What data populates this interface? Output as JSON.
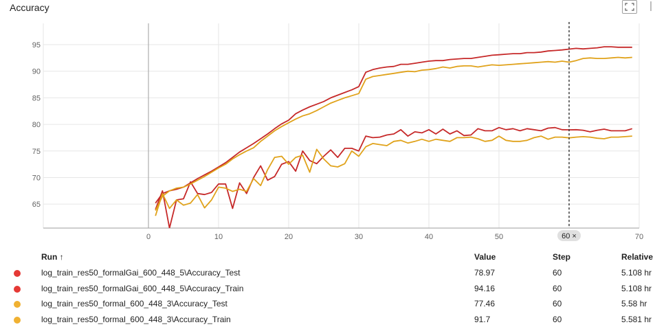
{
  "title": "Accuracy",
  "chart_data": {
    "type": "line",
    "xlim": [
      -15,
      70
    ],
    "ylim": [
      60.5,
      99
    ],
    "x_ticks": [
      0,
      10,
      20,
      30,
      40,
      50,
      60,
      70
    ],
    "y_ticks": [
      65,
      70,
      75,
      80,
      85,
      90,
      95
    ],
    "hover_step": 60,
    "hover_label": "60 ×",
    "grid": true,
    "series": [
      {
        "name": "log_train_res50_formalGai_600_448_5\\Accuracy_Test",
        "color": "#c62828",
        "x": [
          1,
          2,
          3,
          4,
          5,
          6,
          7,
          8,
          9,
          10,
          11,
          12,
          13,
          14,
          15,
          16,
          17,
          18,
          19,
          20,
          21,
          22,
          23,
          24,
          25,
          26,
          27,
          28,
          29,
          30,
          31,
          32,
          33,
          34,
          35,
          36,
          37,
          38,
          39,
          40,
          41,
          42,
          43,
          44,
          45,
          46,
          47,
          48,
          49,
          50,
          51,
          52,
          53,
          54,
          55,
          56,
          57,
          58,
          59,
          60,
          61,
          62,
          63,
          64,
          65,
          66,
          67,
          68,
          69
        ],
        "values": [
          64.0,
          67.5,
          60.5,
          65.8,
          66.0,
          69.2,
          67.0,
          66.8,
          67.2,
          68.8,
          68.8,
          64.2,
          69.0,
          67.0,
          70.0,
          72.2,
          69.5,
          70.2,
          72.5,
          73.0,
          71.2,
          75.0,
          73.2,
          72.6,
          74.0,
          75.2,
          73.8,
          75.5,
          75.5,
          75.0,
          77.8,
          77.5,
          77.6,
          78.0,
          78.2,
          79.0,
          77.8,
          78.6,
          78.4,
          79.0,
          78.2,
          79.1,
          78.2,
          78.8,
          77.9,
          78.0,
          79.2,
          78.8,
          78.8,
          79.4,
          79.0,
          79.2,
          78.8,
          79.2,
          79.0,
          78.8,
          79.3,
          79.4,
          79.0,
          78.97,
          79.0,
          78.9,
          78.6,
          78.9,
          79.1,
          78.8,
          78.8,
          78.8,
          79.2
        ]
      },
      {
        "name": "log_train_res50_formalGai_600_448_5\\Accuracy_Train",
        "color": "#c62828",
        "x": [
          1,
          2,
          3,
          4,
          5,
          6,
          7,
          8,
          9,
          10,
          11,
          12,
          13,
          14,
          15,
          16,
          17,
          18,
          19,
          20,
          21,
          22,
          23,
          24,
          25,
          26,
          27,
          28,
          29,
          30,
          31,
          32,
          33,
          34,
          35,
          36,
          37,
          38,
          39,
          40,
          41,
          42,
          43,
          44,
          45,
          46,
          47,
          48,
          49,
          50,
          51,
          52,
          53,
          54,
          55,
          56,
          57,
          58,
          59,
          60,
          61,
          62,
          63,
          64,
          65,
          66,
          67,
          68,
          69
        ],
        "values": [
          65.2,
          67.0,
          67.5,
          67.8,
          68.2,
          69.0,
          69.8,
          70.5,
          71.2,
          72.0,
          72.8,
          73.8,
          74.8,
          75.6,
          76.4,
          77.3,
          78.2,
          79.2,
          80.1,
          80.8,
          82.0,
          82.7,
          83.3,
          83.8,
          84.3,
          85.0,
          85.5,
          86.0,
          86.5,
          87.1,
          89.8,
          90.3,
          90.6,
          90.8,
          90.9,
          91.3,
          91.3,
          91.5,
          91.7,
          91.9,
          92.0,
          92.0,
          92.2,
          92.3,
          92.4,
          92.4,
          92.6,
          92.8,
          93.0,
          93.1,
          93.2,
          93.3,
          93.3,
          93.5,
          93.5,
          93.6,
          93.8,
          93.9,
          94.0,
          94.16,
          94.3,
          94.2,
          94.3,
          94.4,
          94.6,
          94.6,
          94.5,
          94.5,
          94.5
        ]
      },
      {
        "name": "log_train_res50_formal_600_448_3\\Accuracy_Test",
        "color": "#e0a21a",
        "x": [
          1,
          2,
          3,
          4,
          5,
          6,
          7,
          8,
          9,
          10,
          11,
          12,
          13,
          14,
          15,
          16,
          17,
          18,
          19,
          20,
          21,
          22,
          23,
          24,
          25,
          26,
          27,
          28,
          29,
          30,
          31,
          32,
          33,
          34,
          35,
          36,
          37,
          38,
          39,
          40,
          41,
          42,
          43,
          44,
          45,
          46,
          47,
          48,
          49,
          50,
          51,
          52,
          53,
          54,
          55,
          56,
          57,
          58,
          59,
          60,
          61,
          62,
          63,
          64,
          65,
          66,
          67,
          68,
          69
        ],
        "values": [
          62.8,
          67.0,
          64.2,
          65.8,
          64.8,
          65.2,
          66.8,
          64.3,
          65.8,
          68.2,
          68.0,
          67.4,
          67.8,
          67.4,
          69.8,
          68.5,
          71.5,
          73.8,
          74.0,
          72.5,
          73.8,
          74.2,
          71.0,
          75.3,
          73.5,
          72.2,
          72.0,
          72.6,
          75.0,
          74.0,
          75.8,
          76.4,
          76.2,
          76.0,
          76.8,
          77.0,
          76.5,
          76.8,
          77.2,
          76.8,
          77.2,
          77.0,
          76.8,
          77.5,
          77.5,
          77.6,
          77.3,
          76.8,
          77.0,
          77.8,
          77.0,
          76.8,
          76.8,
          77.0,
          77.5,
          77.8,
          77.2,
          77.6,
          77.6,
          77.46,
          77.6,
          77.7,
          77.6,
          77.4,
          77.3,
          77.6,
          77.6,
          77.7,
          77.8
        ]
      },
      {
        "name": "log_train_res50_formal_600_448_3\\Accuracy_Train",
        "color": "#e0a21a",
        "x": [
          1,
          2,
          3,
          4,
          5,
          6,
          7,
          8,
          9,
          10,
          11,
          12,
          13,
          14,
          15,
          16,
          17,
          18,
          19,
          20,
          21,
          22,
          23,
          24,
          25,
          26,
          27,
          28,
          29,
          30,
          31,
          32,
          33,
          34,
          35,
          36,
          37,
          38,
          39,
          40,
          41,
          42,
          43,
          44,
          45,
          46,
          47,
          48,
          49,
          50,
          51,
          52,
          53,
          54,
          55,
          56,
          57,
          58,
          59,
          60,
          61,
          62,
          63,
          64,
          65,
          66,
          67,
          68,
          69
        ],
        "values": [
          63.8,
          66.5,
          67.5,
          68.0,
          68.2,
          68.8,
          69.5,
          70.2,
          71.0,
          71.8,
          72.5,
          73.5,
          74.3,
          75.0,
          75.6,
          76.8,
          77.8,
          78.8,
          79.6,
          80.3,
          81.0,
          81.6,
          82.0,
          82.6,
          83.3,
          84.0,
          84.5,
          85.0,
          85.4,
          85.8,
          88.5,
          89.0,
          89.2,
          89.4,
          89.6,
          89.8,
          90.0,
          89.9,
          90.2,
          90.3,
          90.5,
          90.8,
          90.6,
          90.9,
          91.0,
          91.0,
          90.8,
          91.0,
          91.2,
          91.1,
          91.2,
          91.3,
          91.4,
          91.5,
          91.6,
          91.7,
          91.8,
          91.7,
          91.9,
          91.7,
          92.0,
          92.4,
          92.5,
          92.4,
          92.4,
          92.5,
          92.6,
          92.5,
          92.6
        ]
      }
    ]
  },
  "table": {
    "headers": {
      "run": "Run ↑",
      "value": "Value",
      "step": "Step",
      "relative": "Relative"
    },
    "rows": [
      {
        "color": "#e53935",
        "run": "log_train_res50_formalGai_600_448_5\\Accuracy_Test",
        "value": "78.97",
        "step": "60",
        "relative": "5.108 hr"
      },
      {
        "color": "#e53935",
        "run": "log_train_res50_formalGai_600_448_5\\Accuracy_Train",
        "value": "94.16",
        "step": "60",
        "relative": "5.108 hr"
      },
      {
        "color": "#f0b132",
        "run": "log_train_res50_formal_600_448_3\\Accuracy_Test",
        "value": "77.46",
        "step": "60",
        "relative": "5.58 hr"
      },
      {
        "color": "#f0b132",
        "run": "log_train_res50_formal_600_448_3\\Accuracy_Train",
        "value": "91.7",
        "step": "60",
        "relative": "5.581 hr"
      }
    ]
  }
}
